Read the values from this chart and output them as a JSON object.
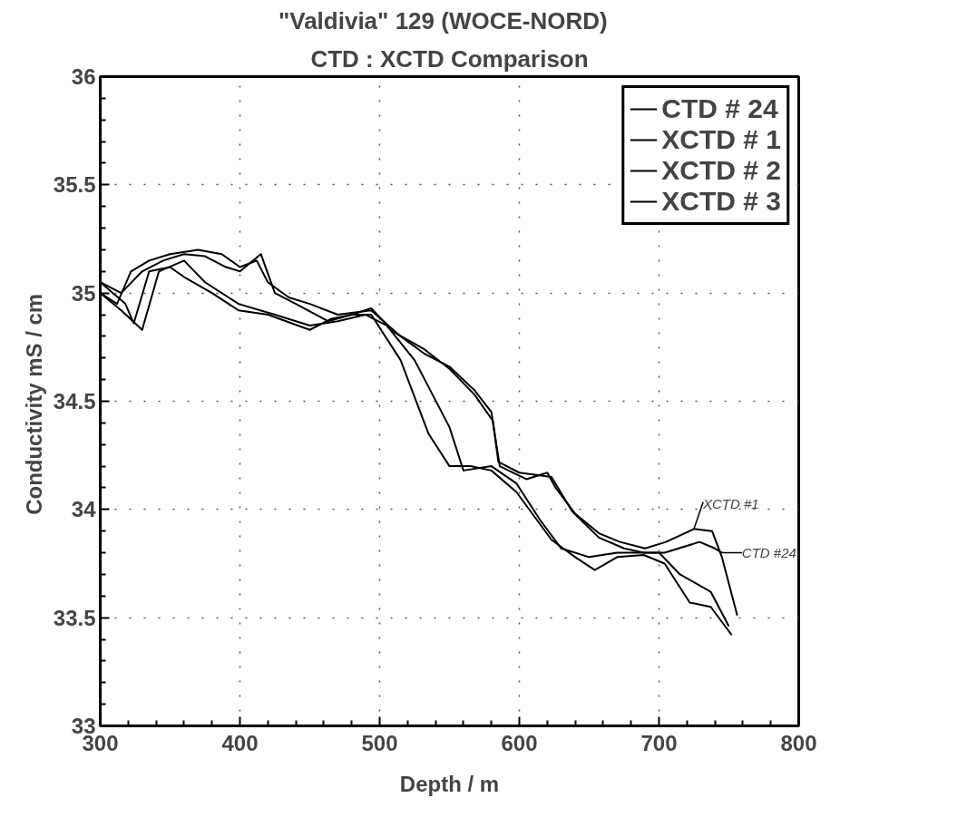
{
  "chart_data": {
    "type": "line",
    "title": "\"Valdivia\"  129  (WOCE-NORD)",
    "subtitle": "CTD : XCTD Comparison",
    "xlabel": "Depth / m",
    "ylabel": "Conductivity  mS / cm",
    "xlim": [
      300,
      800
    ],
    "xticks": [
      300,
      400,
      500,
      600,
      700,
      800
    ],
    "ylim": [
      33,
      36
    ],
    "yticks": [
      33,
      33.5,
      34,
      34.5,
      35,
      35.5,
      36
    ],
    "grid": true,
    "legend": "top right",
    "marker": "none",
    "line_style": "solid",
    "series": [
      {
        "name": "CTD # 24",
        "color": "#000000",
        "x": [
          300,
          315,
          330,
          345,
          360,
          375,
          390,
          400,
          415,
          425,
          440,
          463,
          480,
          494,
          510,
          532,
          550,
          568,
          581,
          585,
          600,
          623,
          638,
          657,
          675,
          689,
          704,
          729,
          740,
          745
        ],
        "values": [
          35.05,
          35.0,
          35.1,
          35.15,
          35.18,
          35.17,
          35.12,
          35.1,
          35.18,
          35.0,
          34.95,
          34.87,
          34.9,
          34.93,
          34.82,
          34.74,
          34.65,
          34.53,
          34.41,
          34.22,
          34.17,
          34.15,
          33.99,
          33.87,
          33.82,
          33.8,
          33.8,
          33.85,
          33.82,
          33.8
        ]
      },
      {
        "name": "XCTD # 1",
        "color": "#000000",
        "x": [
          300,
          312,
          322,
          335,
          350,
          370,
          387,
          400,
          412,
          420,
          435,
          450,
          470,
          494,
          515,
          532,
          550,
          568,
          580,
          586,
          605,
          620,
          626,
          640,
          657,
          672,
          690,
          705,
          725,
          738,
          745,
          756
        ],
        "values": [
          35.0,
          34.95,
          35.1,
          35.15,
          35.18,
          35.2,
          35.18,
          35.12,
          35.15,
          35.05,
          34.98,
          34.95,
          34.9,
          34.92,
          34.8,
          34.72,
          34.66,
          34.55,
          34.45,
          34.2,
          34.14,
          34.17,
          34.1,
          33.98,
          33.89,
          33.85,
          33.82,
          33.85,
          33.91,
          33.9,
          33.78,
          33.51
        ]
      },
      {
        "name": "XCTD # 2",
        "color": "#000000",
        "x": [
          300,
          318,
          324,
          335,
          350,
          361,
          380,
          399,
          420,
          450,
          465,
          480,
          494,
          515,
          535,
          550,
          565,
          580,
          598,
          623,
          640,
          654,
          670,
          689,
          704,
          722,
          737,
          752
        ],
        "values": [
          35.05,
          34.95,
          34.86,
          35.1,
          35.12,
          35.07,
          35.0,
          34.92,
          34.9,
          34.83,
          34.88,
          34.9,
          34.9,
          34.69,
          34.35,
          34.2,
          34.2,
          34.18,
          34.08,
          33.86,
          33.78,
          33.72,
          33.78,
          33.79,
          33.75,
          33.57,
          33.55,
          33.42
        ]
      },
      {
        "name": "XCTD # 3",
        "color": "#000000",
        "x": [
          300,
          315,
          330,
          342,
          360,
          375,
          399,
          425,
          450,
          470,
          490,
          505,
          525,
          550,
          560,
          580,
          598,
          615,
          630,
          650,
          670,
          700,
          715,
          737,
          750
        ],
        "values": [
          35.0,
          34.92,
          34.83,
          35.1,
          35.15,
          35.05,
          34.95,
          34.9,
          34.85,
          34.87,
          34.9,
          34.85,
          34.69,
          34.38,
          34.18,
          34.2,
          34.12,
          33.95,
          33.82,
          33.78,
          33.8,
          33.8,
          33.7,
          33.62,
          33.46
        ]
      }
    ],
    "annotations": [
      {
        "text": "XCTD #1",
        "x": 725,
        "y": 33.91
      },
      {
        "text": "CTD #24",
        "x": 745,
        "y": 33.8
      }
    ]
  }
}
